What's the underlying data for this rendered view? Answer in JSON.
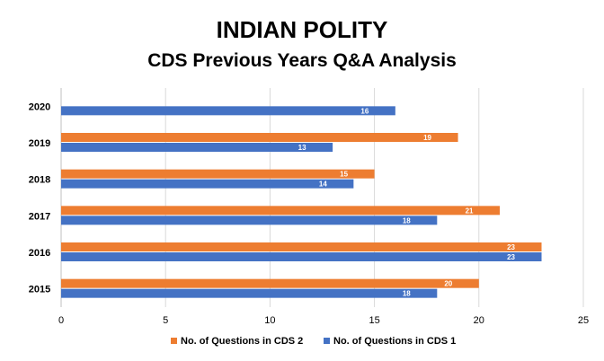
{
  "chart_data": {
    "type": "bar",
    "orientation": "horizontal",
    "title": "INDIAN POLITY",
    "subtitle": "CDS Previous Years Q&A Analysis",
    "categories": [
      "2015",
      "2016",
      "2017",
      "2018",
      "2019",
      "2020"
    ],
    "series": [
      {
        "name": "No. of Questions in CDS 2",
        "color": "#ed7d31",
        "values": [
          20,
          23,
          21,
          15,
          19,
          null
        ]
      },
      {
        "name": "No. of Questions in CDS 1",
        "color": "#4472c4",
        "values": [
          18,
          23,
          18,
          14,
          13,
          16
        ]
      }
    ],
    "xlim": [
      0,
      25
    ],
    "xticks": [
      "0",
      "5",
      "10",
      "15",
      "20",
      "25"
    ],
    "grid": true,
    "legend_position": "bottom",
    "data_labels": true
  }
}
